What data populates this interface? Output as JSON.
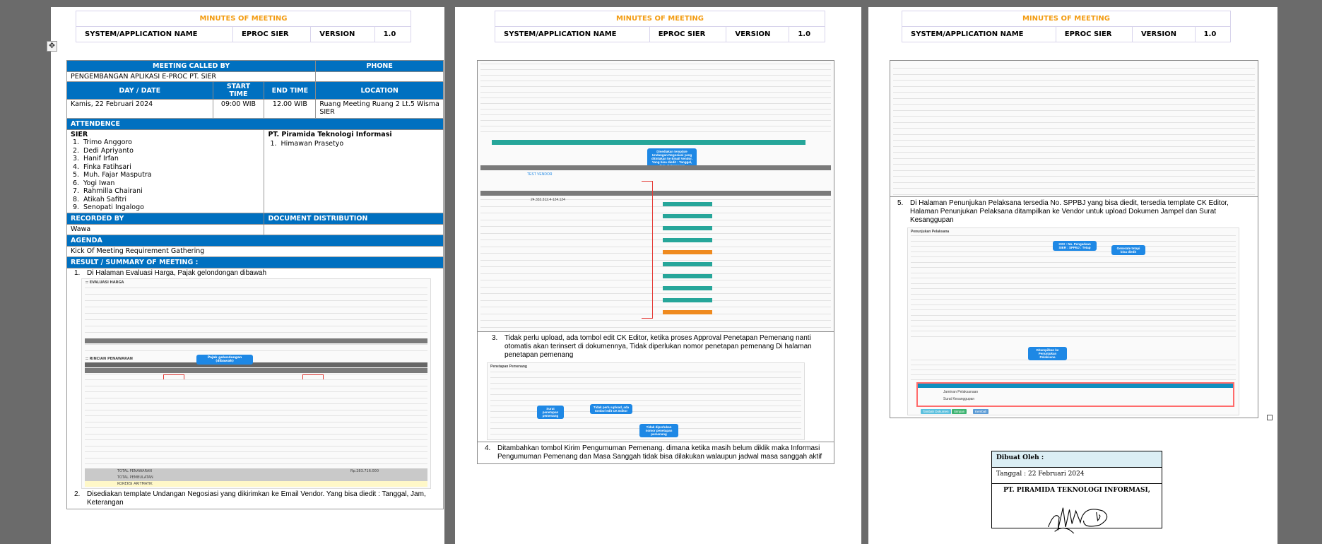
{
  "header": {
    "title": "MINUTES OF MEETING",
    "system_label": "SYSTEM/APPLICATION NAME",
    "system_value": "EPROC SIER",
    "version_label": "VERSION",
    "version_value": "1.0"
  },
  "meeting": {
    "called_by_label": "MEETING  CALLED  BY",
    "phone_label": "PHONE",
    "called_by": "PENGEMBANGAN APLIKASI E-PROC PT. SIER",
    "phone": "",
    "day_label": "DAY / DATE",
    "start_label": "START TIME",
    "end_label": "END TIME",
    "location_label": "LOCATION",
    "day": "Kamis, 22 Februari 2024",
    "start": "09:00 WIB",
    "end": "12.00 WIB",
    "location": "Ruang Meeting Ruang 2 Lt.5 Wisma SIER",
    "attendance_label": "ATTENDENCE",
    "org1": "SIER",
    "org1_people": [
      "Trimo Anggoro",
      "Dedi Apriyanto",
      "Hanif Irfan",
      "Finka Fatihsari",
      "Muh. Fajar Masputra",
      "Yogi Iwan",
      "Rahmilla Chairani",
      "Atikah Safitri",
      "Senopati Ingalogo"
    ],
    "org2": "PT. Piramida Teknologi Informasi",
    "org2_people": [
      "Himawan Prasetyo"
    ],
    "recorded_label": "RECORDED  BY",
    "distribution_label": "DOCUMENT DISTRIBUTION",
    "recorded_by": "Wawa",
    "agenda_label": "AGENDA",
    "agenda": "Kick Of Meeting Requirement Gathering",
    "result_label": "RESULT / SUMMARY OF MEETING :"
  },
  "results": [
    {
      "n": "1.",
      "text": "Di Halaman Evaluasi Harga, Pajak gelondongan dibawah"
    },
    {
      "n": "2.",
      "text": "Disediakan template Undangan Negosiasi yang dikirimkan ke Email Vendor. Yang bisa diedit : Tanggal, Jam, Keterangan"
    },
    {
      "n": "3.",
      "text": "Tidak perlu upload, ada tombol edit CK Editor, ketika proses Approval Penetapan Pemenang nanti otomatis akan terinsert di dokumennya, Tidak diperlukan nomor penetapan pemenang Di halaman penetapan pemenang"
    },
    {
      "n": "4.",
      "text": "Ditambahkan tombol Kirim Pengumuman Pemenang. dimana ketika masih belum diklik maka Informasi Pengumuman Pemenang dan Masa Sanggah tidak bisa dilakukan walaupun jadwal masa sanggah aktif"
    },
    {
      "n": "5.",
      "text": "Di Halaman Penunjukan Pelaksana tersedia No. SPPBJ yang bisa diedit, tersedia template CK Editor, Halaman Penunjukan Pelaksana ditampilkan ke Vendor untuk upload Dokumen Jampel dan Surat Kesanggupan"
    }
  ],
  "shots": {
    "eval_title": ":: EVALUASI HARGA",
    "rincian_title": ":: RINCIAN PENAWARAN",
    "eval_callout": "Pajak gelondongan (dibawah)",
    "total_penawaran": "TOTAL PENAWARAN",
    "total_pembulatan": "TOTAL PEMBULATAN",
    "koreksi": "KOREKSI ARITMATIK",
    "total_value": "Rp.283.716.000",
    "vendor": "TEST VENDOR",
    "npwp": "24.332.312.4-124.124",
    "negosiasi_callout": "Disediakan template Undangan Negosiasi yang ditinlakan ke Email Vendor. Yang bisa diedit : Tanggal, Jam, Keterangan",
    "penetapan_title": "Penetapan Pemenang",
    "penetapan_callout1": "Surat penetapan pemenang",
    "penetapan_callout2": "Tidak perlu upload, ada tombol edit CK Editor",
    "penetapan_callout3": "Tidak diperlukan nomor penetapan pemenang",
    "penunjukan_title": "Penunjukan Pelaksana",
    "sppbj_callout": "XXX : No. Pengadaan SIER : SPPBJ : Tetap",
    "generate_callout": "Generate tetapi bisa diedit",
    "doc_callout": "Ditampilkan ke Penunjukan Pelaksana",
    "jenis_dok": [
      "Jaminan Pelaksanaan",
      "Surat Kesanggupan"
    ],
    "btn_tambah": "Tambah Dokumen",
    "btn_simpan": "Simpan",
    "btn_kembali": "Kembali"
  },
  "signature": {
    "made_by": "Dibuat Oleh :",
    "date": "Tanggal : 22 Februari 2024",
    "company": "PT. PIRAMIDA TEKNOLOGI INFORMASI,"
  },
  "colors": {
    "section_blue": "#0070c0",
    "title_orange": "#f39c12",
    "callout_blue": "#1e88e5",
    "highlight_red": "#e53935"
  }
}
